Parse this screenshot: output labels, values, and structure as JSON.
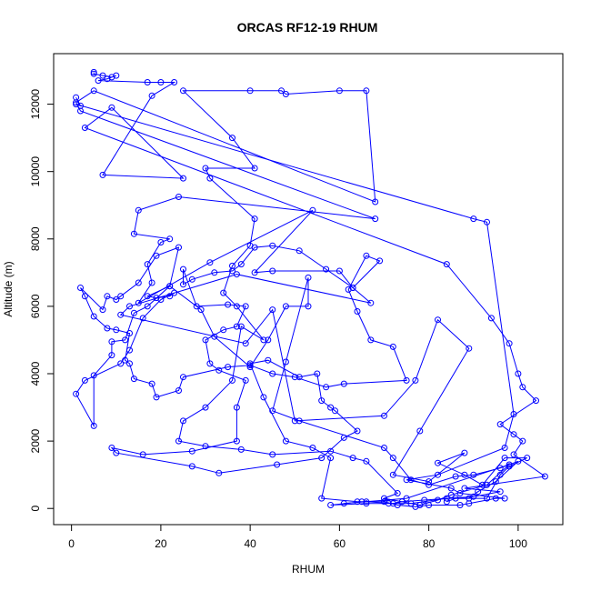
{
  "chart_data": {
    "type": "scatter",
    "title": "ORCAS RF12-19 RHUM",
    "xlabel": "RHUM",
    "ylabel": "Altitude (m)",
    "xlim": [
      -4,
      110
    ],
    "ylim": [
      -480,
      13500
    ],
    "x_ticks": [
      0,
      20,
      40,
      60,
      80,
      100
    ],
    "y_ticks": [
      0,
      2000,
      4000,
      6000,
      8000,
      10000,
      12000
    ],
    "grid": false,
    "legend": "none",
    "color": "#0000ff",
    "series": [
      {
        "style": "line+points",
        "points": [
          [
            5,
            12950
          ],
          [
            5,
            12900
          ],
          [
            7,
            12850
          ],
          [
            9,
            12800
          ],
          [
            10,
            12850
          ],
          [
            8,
            12750
          ],
          [
            6,
            12700
          ],
          [
            17,
            12650
          ],
          [
            20,
            12650
          ],
          [
            23,
            12650
          ],
          [
            18,
            12250
          ],
          [
            7,
            9900
          ],
          [
            25,
            9800
          ],
          [
            9,
            11900
          ],
          [
            3,
            11300
          ],
          [
            84,
            7250
          ],
          [
            94,
            5650
          ],
          [
            98,
            4900
          ],
          [
            100,
            4000
          ],
          [
            101,
            3600
          ],
          [
            104,
            3200
          ],
          [
            96,
            2500
          ],
          [
            99,
            2200
          ],
          [
            101,
            2000
          ],
          [
            99,
            1600
          ],
          [
            106,
            950
          ],
          [
            88,
            600
          ],
          [
            96,
            500
          ],
          [
            90,
            350
          ],
          [
            79,
            250
          ],
          [
            74,
            200
          ],
          [
            72,
            150
          ],
          [
            66,
            200
          ],
          [
            61,
            150
          ],
          [
            75,
            300
          ],
          [
            98,
            1300
          ],
          [
            93,
            700
          ],
          [
            85,
            400
          ],
          [
            82,
            250
          ],
          [
            78,
            100
          ],
          [
            70,
            300
          ],
          [
            73,
            450
          ],
          [
            66,
            1400
          ],
          [
            63,
            1500
          ],
          [
            58,
            1700
          ],
          [
            45,
            1600
          ],
          [
            38,
            1750
          ],
          [
            30,
            1850
          ],
          [
            24,
            2000
          ],
          [
            25,
            2600
          ],
          [
            30,
            3000
          ],
          [
            36,
            3800
          ],
          [
            38,
            5400
          ],
          [
            43,
            5000
          ],
          [
            37,
            6000
          ],
          [
            34,
            6400
          ],
          [
            36,
            7200
          ],
          [
            40,
            7800
          ],
          [
            41,
            8600
          ],
          [
            31,
            9800
          ],
          [
            30,
            10100
          ],
          [
            41,
            10100
          ],
          [
            36,
            11000
          ],
          [
            25,
            12400
          ],
          [
            40,
            12400
          ],
          [
            47,
            12400
          ],
          [
            48,
            12300
          ],
          [
            60,
            12400
          ],
          [
            66,
            12400
          ],
          [
            68,
            9100
          ],
          [
            5,
            12400
          ],
          [
            1,
            12050
          ],
          [
            2,
            11800
          ],
          [
            68,
            8600
          ],
          [
            24,
            9250
          ],
          [
            15,
            8850
          ],
          [
            14,
            8150
          ],
          [
            22,
            8000
          ],
          [
            20,
            7900
          ],
          [
            17,
            7250
          ],
          [
            18,
            6700
          ],
          [
            15,
            6100
          ],
          [
            31,
            7300
          ],
          [
            54,
            8850
          ],
          [
            41,
            7000
          ],
          [
            45,
            7050
          ],
          [
            60,
            7050
          ],
          [
            63,
            6550
          ],
          [
            67,
            6100
          ],
          [
            37,
            6950
          ],
          [
            13,
            6000
          ],
          [
            11,
            5750
          ],
          [
            39,
            4900
          ],
          [
            45,
            5900
          ],
          [
            50,
            2600
          ],
          [
            70,
            2750
          ],
          [
            77,
            3800
          ],
          [
            82,
            5600
          ],
          [
            89,
            4750
          ],
          [
            78,
            2300
          ],
          [
            72,
            1000
          ],
          [
            80,
            800
          ],
          [
            88,
            1650
          ],
          [
            82,
            1350
          ],
          [
            88,
            1000
          ],
          [
            92,
            700
          ],
          [
            97,
            1500
          ],
          [
            102,
            1500
          ],
          [
            98,
            1250
          ],
          [
            96,
            1000
          ],
          [
            93,
            300
          ],
          [
            86,
            300
          ],
          [
            84,
            200
          ]
        ]
      },
      {
        "style": "line+points",
        "points": [
          [
            1,
            12200
          ],
          [
            2,
            11950
          ],
          [
            1,
            12000
          ],
          [
            90,
            8600
          ],
          [
            93,
            8500
          ],
          [
            99,
            2800
          ],
          [
            97,
            1800
          ],
          [
            82,
            1000
          ],
          [
            75,
            850
          ],
          [
            85,
            600
          ],
          [
            87,
            450
          ],
          [
            97,
            300
          ],
          [
            95,
            300
          ],
          [
            89,
            150
          ],
          [
            87,
            100
          ],
          [
            80,
            100
          ],
          [
            77,
            50
          ],
          [
            73,
            100
          ],
          [
            70,
            200
          ],
          [
            64,
            200
          ],
          [
            56,
            300
          ],
          [
            58,
            1500
          ],
          [
            54,
            1800
          ],
          [
            48,
            2000
          ],
          [
            43,
            3300
          ],
          [
            40,
            4300
          ],
          [
            44,
            4400
          ],
          [
            51,
            3900
          ],
          [
            55,
            4000
          ],
          [
            56,
            3200
          ],
          [
            58,
            3000
          ],
          [
            59,
            2900
          ],
          [
            64,
            2300
          ],
          [
            61,
            2100
          ],
          [
            56,
            1500
          ],
          [
            46,
            1300
          ],
          [
            33,
            1050
          ],
          [
            27,
            1250
          ],
          [
            10,
            1650
          ],
          [
            9,
            1800
          ],
          [
            16,
            1600
          ],
          [
            27,
            1700
          ],
          [
            37,
            2000
          ],
          [
            37,
            3000
          ],
          [
            39,
            3800
          ],
          [
            33,
            4100
          ],
          [
            31,
            4300
          ],
          [
            30,
            5000
          ],
          [
            34,
            5300
          ],
          [
            37,
            5400
          ],
          [
            39,
            6000
          ],
          [
            35,
            6050
          ],
          [
            28,
            6000
          ],
          [
            25,
            7100
          ],
          [
            25,
            6650
          ],
          [
            27,
            6800
          ],
          [
            32,
            7000
          ],
          [
            36,
            7050
          ],
          [
            38,
            7250
          ],
          [
            41,
            7750
          ],
          [
            45,
            7800
          ],
          [
            51,
            7650
          ],
          [
            57,
            7100
          ],
          [
            63,
            6550
          ],
          [
            69,
            7350
          ],
          [
            66,
            7500
          ],
          [
            62,
            6500
          ],
          [
            64,
            5850
          ],
          [
            67,
            5000
          ],
          [
            72,
            4800
          ],
          [
            75,
            3800
          ],
          [
            61,
            3700
          ],
          [
            57,
            3600
          ],
          [
            50,
            3900
          ],
          [
            45,
            4000
          ],
          [
            40,
            4250
          ],
          [
            35,
            4200
          ],
          [
            25,
            3900
          ],
          [
            24,
            3500
          ],
          [
            19,
            3300
          ],
          [
            18,
            3700
          ],
          [
            14,
            3850
          ],
          [
            13,
            4300
          ],
          [
            12,
            4400
          ],
          [
            13,
            5200
          ],
          [
            10,
            5300
          ],
          [
            8,
            5350
          ],
          [
            5,
            5700
          ],
          [
            3,
            6300
          ],
          [
            2,
            6550
          ],
          [
            7,
            5900
          ],
          [
            8,
            6300
          ],
          [
            10,
            6200
          ],
          [
            11,
            6300
          ],
          [
            15,
            6700
          ],
          [
            19,
            7500
          ],
          [
            24,
            7750
          ],
          [
            22,
            6600
          ],
          [
            17,
            6300
          ],
          [
            19,
            6250
          ],
          [
            22,
            6300
          ],
          [
            23,
            6400
          ],
          [
            20,
            6200
          ],
          [
            16,
            5650
          ],
          [
            13,
            4700
          ],
          [
            11,
            4300
          ],
          [
            3,
            3800
          ],
          [
            1,
            3400
          ],
          [
            5,
            2450
          ],
          [
            5,
            3950
          ],
          [
            9,
            4550
          ],
          [
            9,
            4950
          ],
          [
            12,
            5000
          ],
          [
            14,
            5800
          ],
          [
            17,
            6000
          ],
          [
            22,
            6600
          ],
          [
            29,
            5900
          ],
          [
            32,
            5100
          ],
          [
            40,
            4200
          ],
          [
            44,
            5000
          ],
          [
            48,
            6000
          ],
          [
            53,
            6000
          ],
          [
            53,
            6850
          ],
          [
            48,
            4350
          ],
          [
            45,
            2900
          ],
          [
            51,
            2600
          ],
          [
            70,
            1800
          ],
          [
            72,
            1500
          ],
          [
            76,
            850
          ],
          [
            80,
            700
          ],
          [
            86,
            950
          ],
          [
            90,
            1000
          ],
          [
            96,
            1200
          ],
          [
            100,
            1400
          ],
          [
            95,
            800
          ],
          [
            91,
            500
          ],
          [
            89,
            300
          ],
          [
            84,
            300
          ],
          [
            76,
            150
          ],
          [
            71,
            150
          ],
          [
            66,
            150
          ],
          [
            58,
            100
          ],
          [
            65,
            200
          ]
        ]
      }
    ]
  }
}
